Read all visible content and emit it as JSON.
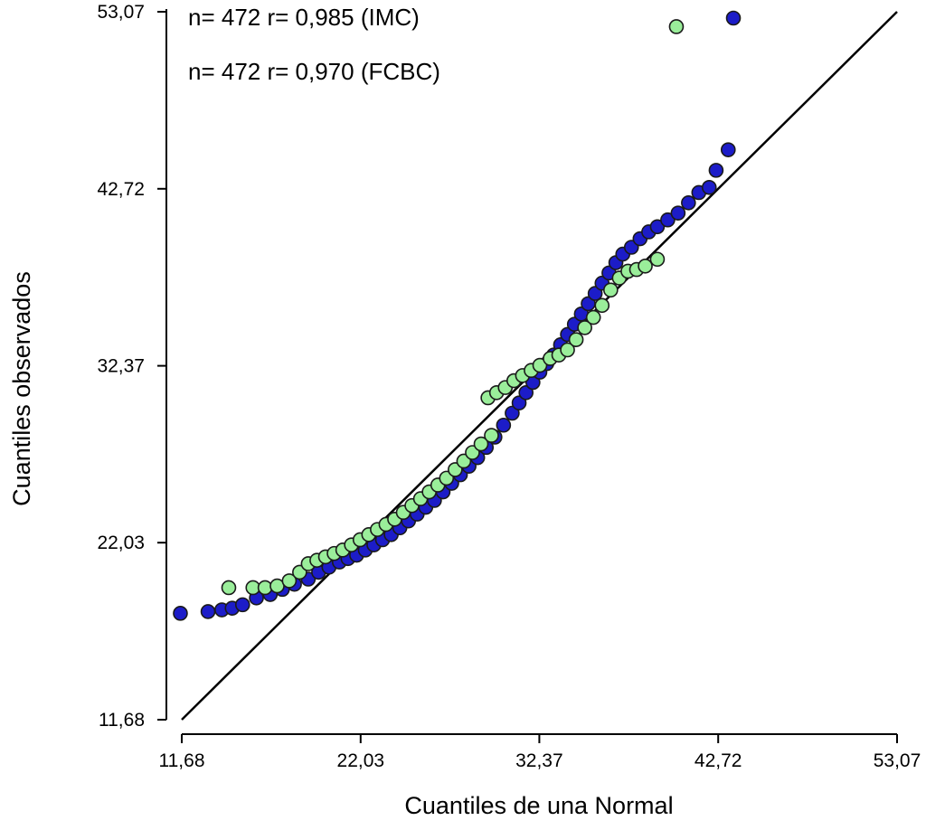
{
  "chart_data": {
    "type": "scatter",
    "title": "",
    "xlabel": "Cuantiles de una Normal",
    "ylabel": "Cuantiles observados",
    "xlim": [
      11.68,
      53.07
    ],
    "ylim": [
      11.68,
      53.07
    ],
    "x_ticks": [
      11.68,
      22.03,
      32.37,
      42.72,
      53.07
    ],
    "y_ticks": [
      11.68,
      22.03,
      32.37,
      42.72,
      53.07
    ],
    "x_tick_labels": [
      "11,68",
      "22,03",
      "32,37",
      "42,72",
      "53,07"
    ],
    "y_tick_labels": [
      "11,68",
      "22,03",
      "32,37",
      "42,72",
      "53,07"
    ],
    "grid": false,
    "reference_line": {
      "from": [
        11.68,
        11.68
      ],
      "to": [
        53.07,
        53.07
      ],
      "color": "#000000"
    },
    "annotations": [
      "n= 472 r= 0,985 (IMC)",
      "n= 472 r= 0,970 (FCBC)"
    ],
    "series": [
      {
        "color": "#1c1cc8",
        "points": [
          [
            11.6,
            17.9
          ],
          [
            13.2,
            18.0
          ],
          [
            14.0,
            18.1
          ],
          [
            14.6,
            18.2
          ],
          [
            15.2,
            18.4
          ],
          [
            16.0,
            18.8
          ],
          [
            16.8,
            19.0
          ],
          [
            17.5,
            19.3
          ],
          [
            18.2,
            19.6
          ],
          [
            19.0,
            19.9
          ],
          [
            19.6,
            20.3
          ],
          [
            20.2,
            20.6
          ],
          [
            20.8,
            20.9
          ],
          [
            21.3,
            21.1
          ],
          [
            21.8,
            21.3
          ],
          [
            22.3,
            21.6
          ],
          [
            22.8,
            21.9
          ],
          [
            23.3,
            22.2
          ],
          [
            23.8,
            22.5
          ],
          [
            24.3,
            22.9
          ],
          [
            24.8,
            23.3
          ],
          [
            25.3,
            23.7
          ],
          [
            25.8,
            24.1
          ],
          [
            26.3,
            24.5
          ],
          [
            26.8,
            25.0
          ],
          [
            27.3,
            25.5
          ],
          [
            27.8,
            26.0
          ],
          [
            28.3,
            26.5
          ],
          [
            28.8,
            27.0
          ],
          [
            29.3,
            27.6
          ],
          [
            29.8,
            28.2
          ],
          [
            30.3,
            28.9
          ],
          [
            30.8,
            29.6
          ],
          [
            31.2,
            30.2
          ],
          [
            31.6,
            30.8
          ],
          [
            32.0,
            31.4
          ],
          [
            32.4,
            32.0
          ],
          [
            32.8,
            32.5
          ],
          [
            33.2,
            33.0
          ],
          [
            33.6,
            33.6
          ],
          [
            34.0,
            34.2
          ],
          [
            34.4,
            34.8
          ],
          [
            34.8,
            35.4
          ],
          [
            35.2,
            36.0
          ],
          [
            35.6,
            36.6
          ],
          [
            36.0,
            37.2
          ],
          [
            36.4,
            37.8
          ],
          [
            36.8,
            38.4
          ],
          [
            37.2,
            38.9
          ],
          [
            37.7,
            39.3
          ],
          [
            38.2,
            39.8
          ],
          [
            38.7,
            40.2
          ],
          [
            39.2,
            40.5
          ],
          [
            39.8,
            40.9
          ],
          [
            40.4,
            41.3
          ],
          [
            41.0,
            41.9
          ],
          [
            41.6,
            42.5
          ],
          [
            42.2,
            42.8
          ],
          [
            42.6,
            43.8
          ],
          [
            43.3,
            45.0
          ],
          [
            43.6,
            52.7
          ]
        ]
      },
      {
        "color": "#9aee9a",
        "points": [
          [
            14.4,
            19.4
          ],
          [
            15.8,
            19.4
          ],
          [
            16.5,
            19.4
          ],
          [
            17.2,
            19.5
          ],
          [
            17.9,
            19.8
          ],
          [
            18.5,
            20.3
          ],
          [
            19.0,
            20.8
          ],
          [
            19.5,
            21.0
          ],
          [
            20.0,
            21.2
          ],
          [
            20.5,
            21.4
          ],
          [
            21.0,
            21.6
          ],
          [
            21.5,
            21.9
          ],
          [
            22.0,
            22.2
          ],
          [
            22.5,
            22.5
          ],
          [
            23.0,
            22.8
          ],
          [
            23.5,
            23.1
          ],
          [
            24.0,
            23.4
          ],
          [
            24.5,
            23.8
          ],
          [
            25.0,
            24.2
          ],
          [
            25.5,
            24.6
          ],
          [
            26.0,
            25.0
          ],
          [
            26.5,
            25.4
          ],
          [
            27.0,
            25.8
          ],
          [
            27.5,
            26.3
          ],
          [
            28.0,
            26.8
          ],
          [
            28.5,
            27.3
          ],
          [
            29.0,
            27.8
          ],
          [
            29.6,
            28.3
          ],
          [
            29.4,
            30.5
          ],
          [
            29.9,
            30.8
          ],
          [
            30.4,
            31.1
          ],
          [
            30.9,
            31.5
          ],
          [
            31.4,
            31.8
          ],
          [
            31.9,
            32.1
          ],
          [
            32.4,
            32.4
          ],
          [
            33.0,
            32.8
          ],
          [
            33.5,
            33.0
          ],
          [
            34.0,
            33.3
          ],
          [
            34.5,
            33.9
          ],
          [
            35.0,
            34.6
          ],
          [
            35.5,
            35.2
          ],
          [
            36.0,
            35.9
          ],
          [
            36.5,
            36.8
          ],
          [
            37.0,
            37.5
          ],
          [
            37.5,
            37.9
          ],
          [
            38.0,
            38.0
          ],
          [
            38.5,
            38.2
          ],
          [
            39.2,
            38.6
          ],
          [
            40.3,
            52.2
          ]
        ]
      }
    ]
  }
}
